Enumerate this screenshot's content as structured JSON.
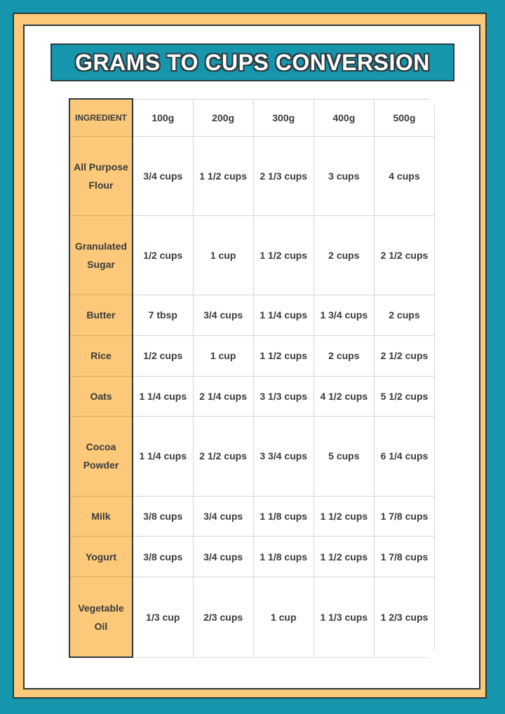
{
  "header": {
    "title": "GRAMS TO CUPS CONVERSION"
  },
  "table": {
    "columns": [
      "INGREDIENT",
      "100g",
      "200g",
      "300g",
      "400g",
      "500g"
    ],
    "rows": [
      [
        "All Purpose Flour",
        "3/4 cups",
        "1 1/2 cups",
        "2 1/3 cups",
        "3 cups",
        "4 cups"
      ],
      [
        "Granulated Sugar",
        "1/2 cups",
        "1 cup",
        "1 1/2 cups",
        "2 cups",
        "2 1/2 cups"
      ],
      [
        "Butter",
        "7 tbsp",
        "3/4 cups",
        "1 1/4 cups",
        "1 3/4 cups",
        "2 cups"
      ],
      [
        "Rice",
        "1/2 cups",
        "1 cup",
        "1 1/2 cups",
        "2 cups",
        "2 1/2 cups"
      ],
      [
        "Oats",
        "1 1/4 cups",
        "2 1/4 cups",
        "3 1/3 cups",
        "4 1/2 cups",
        "5 1/2 cups"
      ],
      [
        "Cocoa Powder",
        "1 1/4 cups",
        "2 1/2 cups",
        "3 3/4 cups",
        "5 cups",
        "6 1/4 cups"
      ],
      [
        "Milk",
        "3/8 cups",
        "3/4 cups",
        "1 1/8 cups",
        "1 1/2 cups",
        "1 7/8 cups"
      ],
      [
        "Yogurt",
        "3/8 cups",
        "3/4 cups",
        "1 1/8 cups",
        "1 1/2 cups",
        "1 7/8 cups"
      ],
      [
        "Vegetable Oil",
        "1/3 cup",
        "2/3 cups",
        "1 cup",
        "1 1/3 cups",
        "1 2/3 cups"
      ]
    ]
  }
}
